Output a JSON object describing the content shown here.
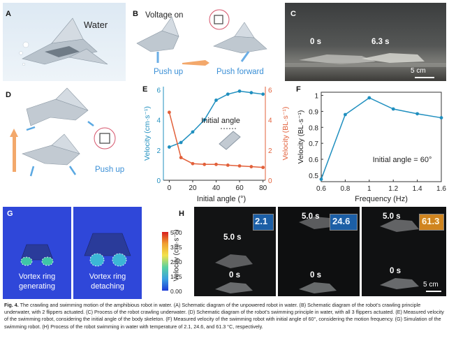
{
  "panels": {
    "A": {
      "label": "A",
      "water": "Water"
    },
    "B": {
      "label": "B",
      "voltage": "Voltage on",
      "push_up": "Push up",
      "push_forward": "Push forward"
    },
    "C": {
      "label": "C",
      "t0": "0 s",
      "t1": "6.3 s",
      "scale": "5 cm"
    },
    "D": {
      "label": "D",
      "push_up": "Push up"
    },
    "E": {
      "label": "E",
      "annotation": "Initial angle"
    },
    "F": {
      "label": "F",
      "annotation": "Initial angle = 60°"
    },
    "G": {
      "label": "G",
      "left_caption_1": "Vortex ring",
      "left_caption_2": "generating",
      "right_caption_1": "Vortex ring",
      "right_caption_2": "detaching",
      "colorbar_title": "Velocity (cm·s⁻¹)",
      "colorbar_ticks": [
        "5.00",
        "3.75",
        "2.50",
        "1.25",
        "0.00"
      ]
    },
    "H": {
      "label": "H",
      "t_top": "5.0 s",
      "t_bottom": "0 s",
      "scale": "5 cm",
      "temps": [
        "2.1",
        "24.6",
        "61.3"
      ]
    }
  },
  "caption": {
    "title": "Fig. 4.",
    "text": " The crawling and swimming motion of the amphibious robot in water. (A) Schematic diagram of the unpowered robot in water. (B) Schematic diagram of the robot’s crawling principle underwater, with 2 flippers actuated. (C) Process of the robot crawling underwater. (D) Schematic diagram of the robot’s swimming principle in water, with all 3 flippers actuated. (E) Measured velocity of the swimming robot, considering the initial angle of the body skeleton. (F) Measured velocity of the swimming robot with initial angle of 60°, considering the motion frequency. (G) Simulation of the swimming robot. (H) Process of the robot swimming in water with temperature of 2.1, 24.6, and 61.3 °C, respectively."
  },
  "chart_data": [
    {
      "type": "line",
      "panel": "E",
      "xlabel": "Initial angle (°)",
      "x_ticks": [
        "0",
        "20",
        "40",
        "60",
        "80"
      ],
      "xlim": [
        -5,
        82
      ],
      "series": [
        {
          "axis": "left",
          "color": "#1f8fbf",
          "x": [
            0,
            10,
            20,
            30,
            40,
            50,
            60,
            70,
            80
          ],
          "values": [
            2.2,
            2.5,
            3.2,
            4.0,
            5.3,
            5.7,
            5.9,
            5.8,
            5.7
          ]
        },
        {
          "axis": "right",
          "color": "#e2603a",
          "x": [
            0,
            10,
            20,
            30,
            40,
            50,
            60,
            70,
            80
          ],
          "values": [
            4.5,
            1.5,
            1.1,
            1.05,
            1.05,
            1.0,
            0.95,
            0.9,
            0.85
          ]
        }
      ],
      "y_left": {
        "label": "Velocity (cm·s⁻¹)",
        "ticks": [
          "0",
          "2",
          "4",
          "6"
        ],
        "ylim": [
          0,
          6.2
        ],
        "color": "#1f8fbf"
      },
      "y_right": {
        "label": "Velocity (BL·s⁻¹)",
        "ticks": [
          "0",
          "2",
          "4",
          "6"
        ],
        "ylim": [
          0,
          6.2
        ],
        "color": "#e2603a"
      }
    },
    {
      "type": "line",
      "panel": "F",
      "xlabel": "Frequency (Hz)",
      "ylabel": "Velocity (BL·s⁻¹)",
      "x_ticks": [
        "0.6",
        "0.8",
        "1",
        "1.2",
        "1.4",
        "1.6"
      ],
      "y_ticks": [
        "0.5",
        "0.6",
        "0.7",
        "0.8",
        "0.9",
        "1"
      ],
      "xlim": [
        0.6,
        1.6
      ],
      "ylim": [
        0.46,
        1.02
      ],
      "series": [
        {
          "color": "#1f8fbf",
          "x": [
            0.6,
            0.8,
            1.0,
            1.2,
            1.4,
            1.6
          ],
          "values": [
            0.475,
            0.88,
            0.985,
            0.915,
            0.885,
            0.86
          ]
        }
      ]
    }
  ]
}
